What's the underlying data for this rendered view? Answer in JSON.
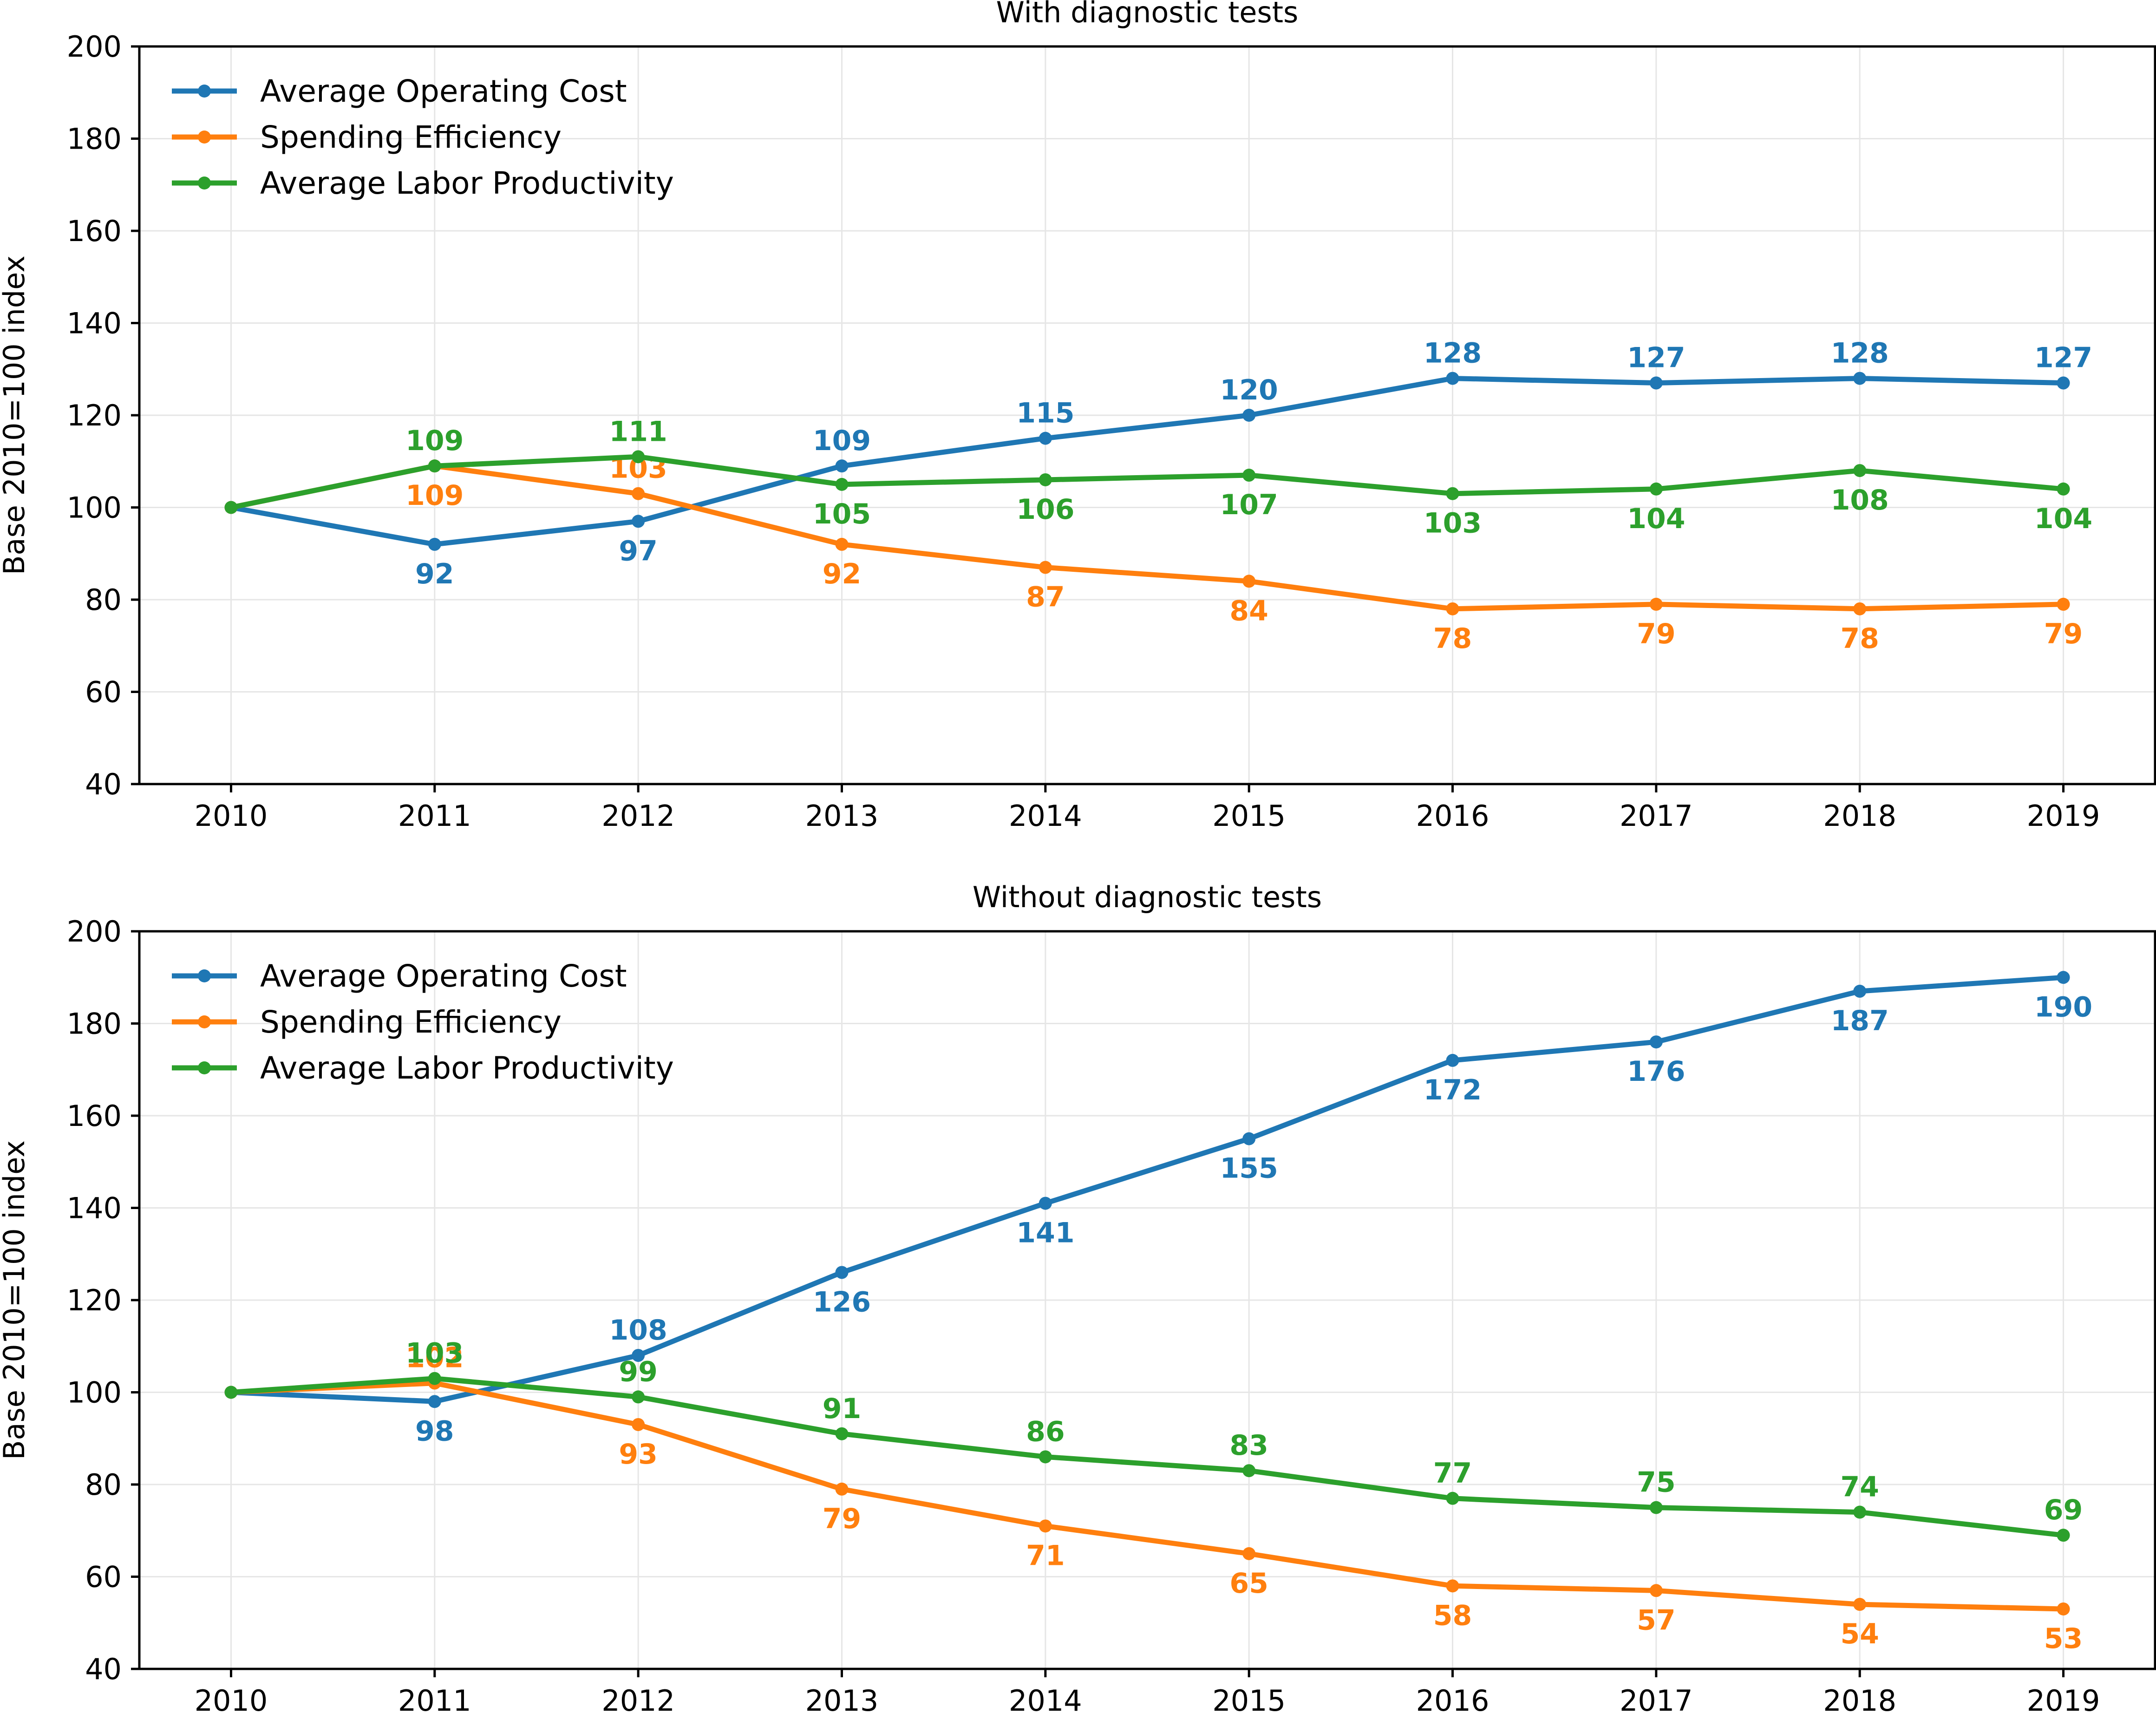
{
  "colors": {
    "Average Operating Cost": "#1f77b4",
    "Spending Efficiency": "#ff7f0e",
    "Average Labor Productivity": "#2ca02c"
  },
  "chart_data": [
    {
      "type": "line",
      "title": "With diagnostic tests",
      "ylabel": "Base 2010=100 index",
      "xlabel": "",
      "ylim": [
        40,
        200
      ],
      "yticks": [
        40,
        60,
        80,
        100,
        120,
        140,
        160,
        180,
        200
      ],
      "x": [
        2010,
        2011,
        2012,
        2013,
        2014,
        2015,
        2016,
        2017,
        2018,
        2019
      ],
      "grid": true,
      "legend": "upper-left",
      "series": [
        {
          "name": "Average Operating Cost",
          "values": [
            100,
            92,
            97,
            109,
            115,
            120,
            128,
            127,
            128,
            127
          ],
          "labels": [
            "",
            "92",
            "97",
            "109",
            "115",
            "120",
            "128",
            "127",
            "128",
            "127"
          ],
          "label_pos": [
            "",
            "below",
            "below",
            "above",
            "above",
            "above",
            "above",
            "above",
            "above",
            "above"
          ]
        },
        {
          "name": "Spending Efficiency",
          "values": [
            100,
            109,
            103,
            92,
            87,
            84,
            78,
            79,
            78,
            79
          ],
          "labels": [
            "",
            "109",
            "103",
            "92",
            "87",
            "84",
            "78",
            "79",
            "78",
            "79"
          ],
          "label_pos": [
            "",
            "below",
            "above",
            "below",
            "below",
            "below",
            "below",
            "below",
            "below",
            "below"
          ]
        },
        {
          "name": "Average Labor Productivity",
          "values": [
            100,
            109,
            111,
            105,
            106,
            107,
            103,
            104,
            108,
            104
          ],
          "labels": [
            "",
            "109",
            "111",
            "105",
            "106",
            "107",
            "103",
            "104",
            "108",
            "104"
          ],
          "label_pos": [
            "",
            "above",
            "above",
            "below",
            "below",
            "below",
            "below",
            "below",
            "below",
            "below"
          ]
        }
      ]
    },
    {
      "type": "line",
      "title": "Without diagnostic tests",
      "ylabel": "Base 2010=100 index",
      "xlabel": "",
      "ylim": [
        40,
        200
      ],
      "yticks": [
        40,
        60,
        80,
        100,
        120,
        140,
        160,
        180,
        200
      ],
      "x": [
        2010,
        2011,
        2012,
        2013,
        2014,
        2015,
        2016,
        2017,
        2018,
        2019
      ],
      "grid": true,
      "legend": "upper-left",
      "series": [
        {
          "name": "Average Operating Cost",
          "values": [
            100,
            98,
            108,
            126,
            141,
            155,
            172,
            176,
            187,
            190
          ],
          "labels": [
            "",
            "98",
            "108",
            "126",
            "141",
            "155",
            "172",
            "176",
            "187",
            "190"
          ],
          "label_pos": [
            "",
            "below",
            "above",
            "below",
            "below",
            "below",
            "below",
            "below",
            "below",
            "below"
          ]
        },
        {
          "name": "Spending Efficiency",
          "values": [
            100,
            102,
            93,
            79,
            71,
            65,
            58,
            57,
            54,
            53
          ],
          "labels": [
            "",
            "102",
            "93",
            "79",
            "71",
            "65",
            "58",
            "57",
            "54",
            "53"
          ],
          "label_pos": [
            "",
            "above",
            "below",
            "below",
            "below",
            "below",
            "below",
            "below",
            "below",
            "below"
          ]
        },
        {
          "name": "Average Labor Productivity",
          "values": [
            100,
            103,
            99,
            91,
            86,
            83,
            77,
            75,
            74,
            69
          ],
          "labels": [
            "",
            "103",
            "99",
            "91",
            "86",
            "83",
            "77",
            "75",
            "74",
            "69"
          ],
          "label_pos": [
            "",
            "above",
            "above",
            "above",
            "above",
            "above",
            "above",
            "above",
            "above",
            "above"
          ]
        }
      ]
    }
  ]
}
